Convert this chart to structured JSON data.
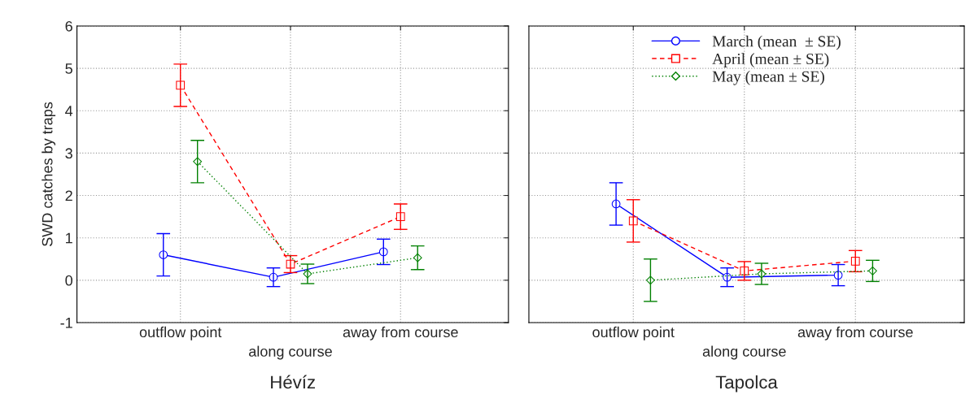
{
  "chart_data": [
    {
      "type": "line",
      "xlabel": "Hévíz",
      "ylabel": "SWD catches by traps",
      "categories": [
        "outflow point",
        "along course",
        "away from course"
      ],
      "ylim": [
        -1,
        6
      ],
      "yticks": [
        -1,
        0,
        1,
        2,
        3,
        4,
        5,
        6
      ],
      "grid": true,
      "series": [
        {
          "color": "#0000ff",
          "marker": "circle",
          "line_style": "solid",
          "values": [
            0.6,
            0.07,
            0.67
          ],
          "errors": [
            0.5,
            0.22,
            0.3
          ]
        },
        {
          "color": "#ff0000",
          "marker": "square",
          "line_style": "dashed",
          "values": [
            4.6,
            0.38,
            1.5
          ],
          "errors": [
            0.5,
            0.2,
            0.3
          ]
        },
        {
          "color": "#008000",
          "marker": "diamond",
          "line_style": "dotted",
          "values": [
            2.8,
            0.15,
            0.53
          ],
          "errors": [
            0.5,
            0.23,
            0.28
          ]
        }
      ]
    },
    {
      "type": "line",
      "xlabel": "Tapolca",
      "categories": [
        "outflow point",
        "along course",
        "away from course"
      ],
      "ylim": [
        -1,
        6
      ],
      "yticks": [
        -1,
        0,
        1,
        2,
        3,
        4,
        5,
        6
      ],
      "grid": true,
      "legend": "top",
      "tick_labels": "x",
      "series": [
        {
          "name": "March (mean  ± SE)",
          "color": "#0000ff",
          "marker": "circle",
          "line_style": "solid",
          "values": [
            1.8,
            0.07,
            0.12
          ],
          "errors": [
            0.5,
            0.22,
            0.25
          ]
        },
        {
          "name": "April (mean ± SE)",
          "color": "#ff0000",
          "marker": "square",
          "line_style": "dashed",
          "values": [
            1.4,
            0.22,
            0.45
          ],
          "errors": [
            0.5,
            0.22,
            0.25
          ]
        },
        {
          "name": "May (mean ± SE)",
          "color": "#008000",
          "marker": "diamond",
          "line_style": "dotted",
          "values": [
            0.0,
            0.15,
            0.22
          ],
          "errors": [
            0.5,
            0.25,
            0.25
          ]
        }
      ]
    }
  ]
}
